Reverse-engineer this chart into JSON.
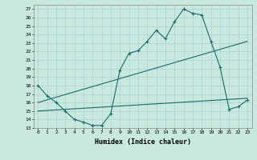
{
  "xlabel": "Humidex (Indice chaleur)",
  "xlim": [
    -0.5,
    23.5
  ],
  "ylim": [
    13,
    27.5
  ],
  "yticks": [
    13,
    14,
    15,
    16,
    17,
    18,
    19,
    20,
    21,
    22,
    23,
    24,
    25,
    26,
    27
  ],
  "xticks": [
    0,
    1,
    2,
    3,
    4,
    5,
    6,
    7,
    8,
    9,
    10,
    11,
    12,
    13,
    14,
    15,
    16,
    17,
    18,
    19,
    20,
    21,
    22,
    23
  ],
  "bg_color": "#c8e8e0",
  "line_color": "#1a6b6b",
  "grid_color": "#aad4cc",
  "line1_x": [
    0,
    1,
    2,
    3,
    4,
    5,
    6,
    7,
    8,
    9,
    10,
    11,
    12,
    13,
    14,
    15,
    16,
    17,
    18,
    19,
    20,
    21,
    22,
    23
  ],
  "line1_y": [
    18.0,
    16.8,
    16.0,
    15.0,
    14.0,
    13.7,
    13.3,
    13.3,
    14.7,
    19.8,
    21.8,
    22.1,
    23.2,
    24.5,
    23.5,
    25.5,
    27.0,
    26.5,
    26.3,
    23.2,
    20.2,
    15.2,
    15.5,
    16.3
  ],
  "line2_x": [
    0,
    23
  ],
  "line2_y": [
    16.0,
    23.2
  ],
  "line3_x": [
    0,
    23
  ],
  "line3_y": [
    15.0,
    16.5
  ]
}
